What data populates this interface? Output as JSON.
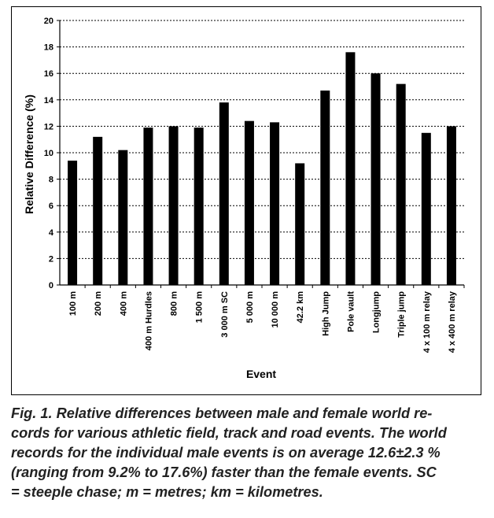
{
  "chart_data": {
    "type": "bar",
    "categories": [
      "100 m",
      "200 m",
      "400 m",
      "400 m Hurdles",
      "800 m",
      "1 500 m",
      "3 000 m SC",
      "5 000 m",
      "10 000 m",
      "42.2 km",
      "High Jump",
      "Pole vault",
      "Longjump",
      "Triple jump",
      "4 x 100 m relay",
      "4 x 400 m relay"
    ],
    "values": [
      9.4,
      11.2,
      10.2,
      11.9,
      12.0,
      11.9,
      13.8,
      12.4,
      12.3,
      9.2,
      14.7,
      17.6,
      16.0,
      15.2,
      11.5,
      12.0
    ],
    "xlabel": "Event",
    "ylabel": "Relative Difference (%)",
    "ylim": [
      0,
      20
    ],
    "yticks": [
      0,
      2,
      4,
      6,
      8,
      10,
      12,
      14,
      16,
      18,
      20
    ],
    "grid": "dotted horizontal",
    "bar_color": "#000000"
  },
  "caption": {
    "lines": [
      "Fig. 1.  Relative differences between male and female world re-",
      "cords for various athletic field, track and road events. The world",
      "records for the individual male events is on average 12.6±2.3 %",
      "(ranging from  9.2% to 17.6%) faster than the female events.  SC",
      "= steeple chase; m = metres; km = kilometres."
    ]
  }
}
